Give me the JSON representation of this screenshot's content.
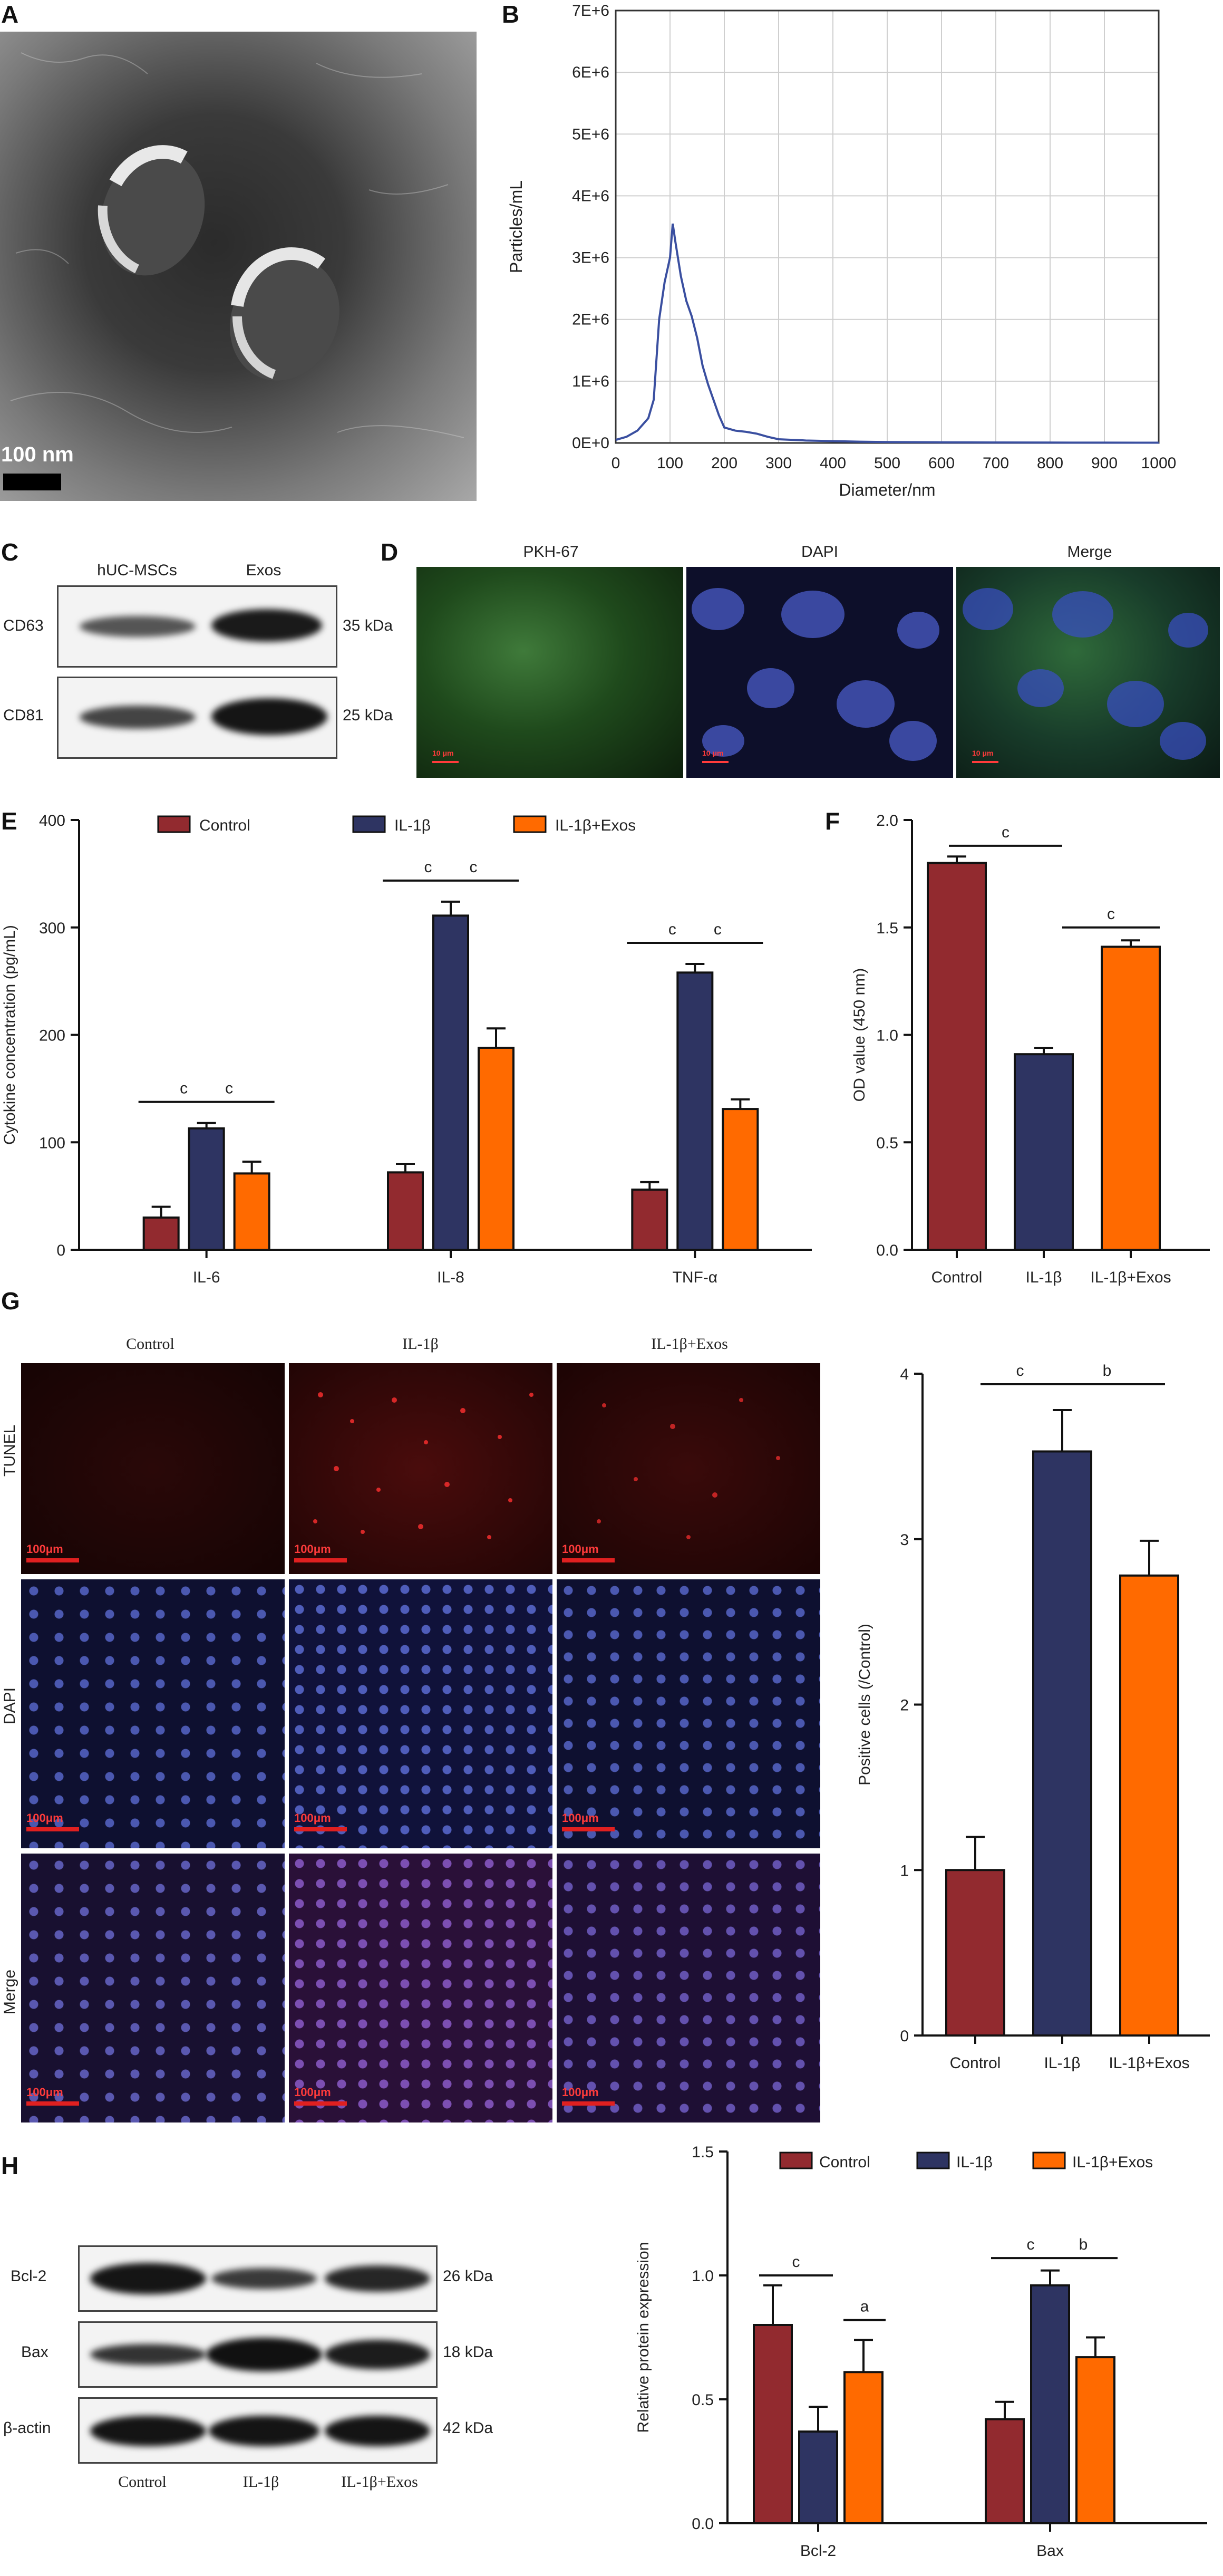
{
  "panels": {
    "A": {
      "label": "A",
      "scale": "100 nm"
    },
    "B": {
      "label": "B"
    },
    "C": {
      "label": "C",
      "cols": [
        "hUC-MSCs",
        "Exos"
      ],
      "rows": [
        {
          "name": "CD63",
          "kda": "35 kDa"
        },
        {
          "name": "CD81",
          "kda": "25 kDa"
        }
      ]
    },
    "D": {
      "label": "D",
      "titles": [
        "PKH-67",
        "DAPI",
        "Merge"
      ],
      "scale": "10 μm"
    },
    "E": {
      "label": "E"
    },
    "F": {
      "label": "F"
    },
    "G": {
      "label": "G",
      "cols": [
        "Control",
        "IL-1β",
        "IL-1β+Exos"
      ],
      "rows": [
        "TUNEL",
        "DAPI",
        "Merge"
      ],
      "scale": "100μm"
    },
    "H": {
      "label": "H",
      "rows": [
        {
          "name": "Bcl-2",
          "kda": "26 kDa"
        },
        {
          "name": "Bax",
          "kda": "18 kDa"
        },
        {
          "name": "β-actin",
          "kda": "42 kDa"
        }
      ],
      "cols": [
        "Control",
        "IL-1β",
        "IL-1β+Exos"
      ]
    }
  },
  "colors": {
    "control": "#922a2f",
    "il1b": "#2e3462",
    "exos": "#ff6a00",
    "nta_line": "#3a4fa0"
  },
  "chart_data": [
    {
      "id": "B",
      "type": "line",
      "xlabel": "Diameter/nm",
      "ylabel": "Particles/mL",
      "xlim": [
        0,
        1000
      ],
      "ylim": [
        0,
        7000000
      ],
      "xticks": [
        "0",
        "100",
        "200",
        "300",
        "400",
        "500",
        "600",
        "700",
        "800",
        "900",
        "1000"
      ],
      "yticks": [
        "0E+0",
        "1E+6",
        "2E+6",
        "3E+6",
        "4E+6",
        "5E+6",
        "6E+6",
        "7E+6"
      ],
      "grid": true,
      "x": [
        0,
        20,
        40,
        60,
        70,
        80,
        90,
        100,
        105,
        110,
        120,
        130,
        140,
        150,
        160,
        170,
        180,
        190,
        200,
        220,
        240,
        260,
        280,
        300,
        350,
        400,
        450,
        500,
        600,
        700,
        800,
        900,
        1000
      ],
      "y": [
        50000,
        100000,
        200000,
        400000,
        700000,
        2000000,
        2600000,
        3000000,
        3550000,
        3250000,
        2700000,
        2300000,
        2050000,
        1700000,
        1250000,
        950000,
        700000,
        450000,
        250000,
        200000,
        180000,
        150000,
        100000,
        60000,
        40000,
        30000,
        20000,
        15000,
        10000,
        8000,
        6000,
        5000,
        4000
      ]
    },
    {
      "id": "E",
      "type": "bar",
      "ylabel": "Cytokine concentration (pg/mL)",
      "ylim": [
        0,
        400
      ],
      "yticks": [
        "0",
        "100",
        "200",
        "300",
        "400"
      ],
      "categories": [
        "IL-6",
        "IL-8",
        "TNF-α"
      ],
      "legend_placement": "top",
      "series": [
        {
          "name": "Control",
          "values": [
            30,
            72,
            56
          ],
          "errors": [
            10,
            8,
            7
          ]
        },
        {
          "name": "IL-1β",
          "values": [
            113,
            311,
            258
          ],
          "errors": [
            5,
            13,
            8
          ]
        },
        {
          "name": "IL-1β+Exos",
          "values": [
            71,
            188,
            131
          ],
          "errors": [
            11,
            18,
            9
          ]
        }
      ],
      "significance": [
        "c",
        "c",
        "c",
        "c",
        "c",
        "c"
      ]
    },
    {
      "id": "F",
      "type": "bar",
      "ylabel": "OD value (450 nm)",
      "ylim": [
        0,
        2.0
      ],
      "yticks": [
        "0.0",
        "0.5",
        "1.0",
        "1.5",
        "2.0"
      ],
      "categories": [
        "Control",
        "IL-1β",
        "IL-1β+Exos"
      ],
      "values": [
        1.8,
        0.91,
        1.41
      ],
      "errors": [
        0.03,
        0.03,
        0.03
      ],
      "significance": [
        "c",
        "c"
      ]
    },
    {
      "id": "G",
      "type": "bar",
      "ylabel": "Positive cells (/Control)",
      "ylim": [
        0,
        4
      ],
      "yticks": [
        "0",
        "1",
        "2",
        "3",
        "4"
      ],
      "categories": [
        "Control",
        "IL-1β",
        "IL-1β+Exos"
      ],
      "values": [
        1.0,
        3.53,
        2.78
      ],
      "errors": [
        0.2,
        0.25,
        0.21
      ],
      "significance": [
        "c",
        "b"
      ]
    },
    {
      "id": "H",
      "type": "bar",
      "ylabel": "Relative protein expression",
      "ylim": [
        0,
        1.5
      ],
      "yticks": [
        "0.0",
        "0.5",
        "1.0",
        "1.5"
      ],
      "categories": [
        "Bcl-2",
        "Bax"
      ],
      "legend_placement": "top",
      "series": [
        {
          "name": "Control",
          "values": [
            0.8,
            0.42
          ],
          "errors": [
            0.16,
            0.07
          ]
        },
        {
          "name": "IL-1β",
          "values": [
            0.37,
            0.96
          ],
          "errors": [
            0.1,
            0.06
          ]
        },
        {
          "name": "IL-1β+Exos",
          "values": [
            0.61,
            0.67
          ],
          "errors": [
            0.13,
            0.08
          ]
        }
      ],
      "significance": [
        "c",
        "a",
        "c",
        "b"
      ]
    }
  ]
}
